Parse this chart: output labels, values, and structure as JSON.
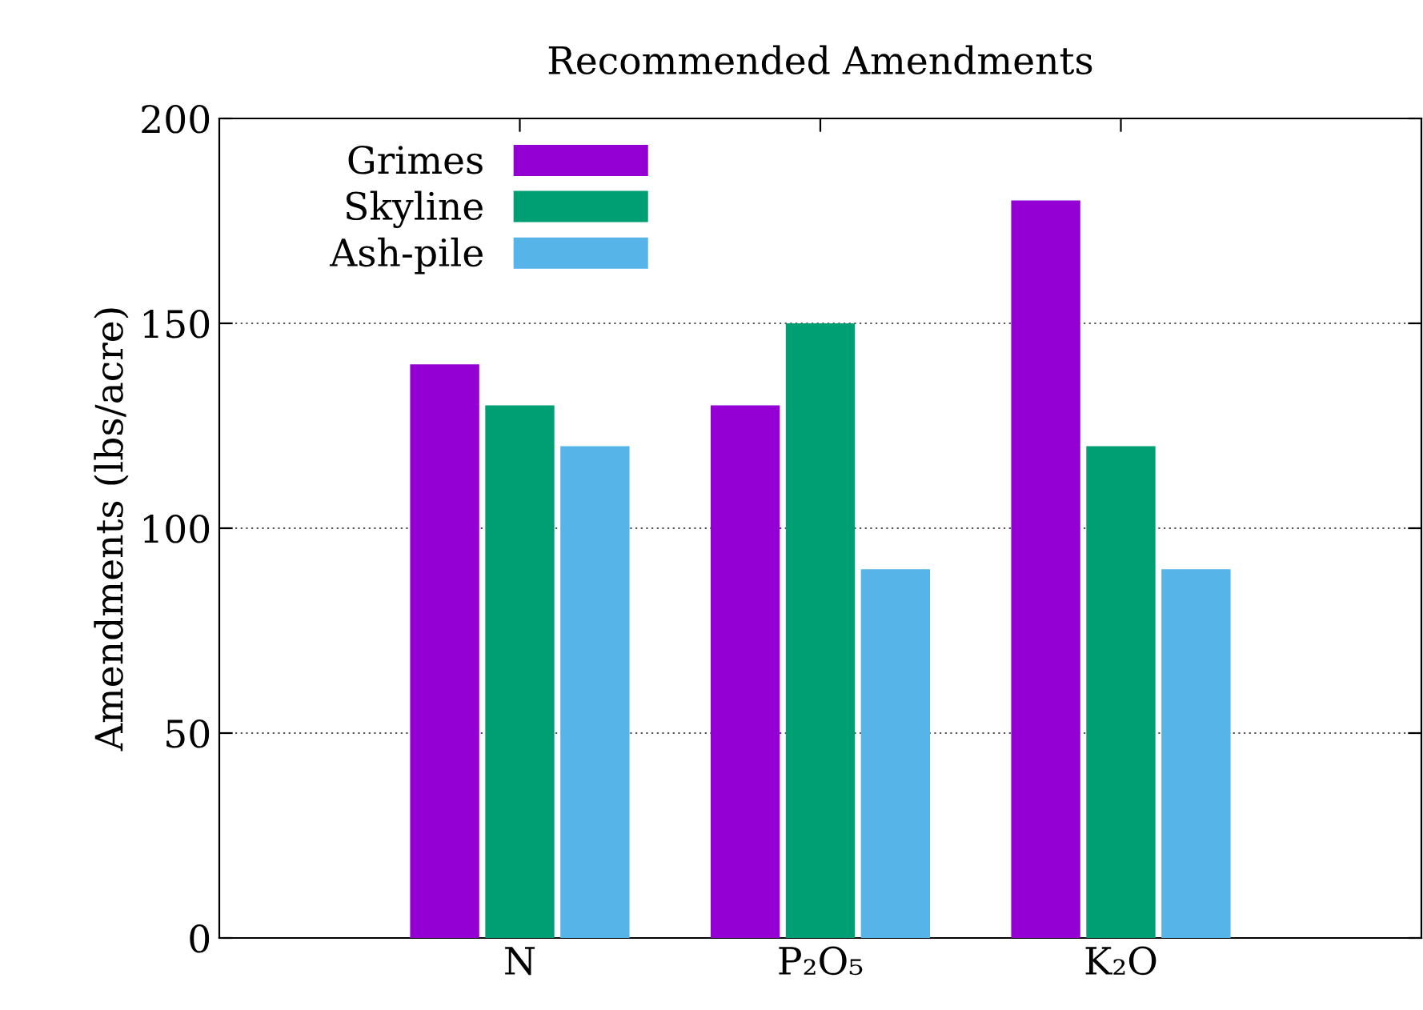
{
  "chart_data": {
    "type": "bar",
    "title": "Recommended Amendments",
    "ylabel": "Amendments (lbs/acre)",
    "categories": [
      "N",
      "P₂O₅",
      "K₂O"
    ],
    "series": [
      {
        "name": "Grimes",
        "color": "#9400d3",
        "values": [
          140,
          130,
          180
        ]
      },
      {
        "name": "Skyline",
        "color": "#009e73",
        "values": [
          130,
          150,
          120
        ]
      },
      {
        "name": "Ash-pile",
        "color": "#56b4e9",
        "values": [
          120,
          90,
          90
        ]
      }
    ],
    "ylim": [
      0,
      200
    ],
    "yticks": [
      0,
      50,
      100,
      150,
      200
    ],
    "grid": "y",
    "legend": "top left"
  }
}
